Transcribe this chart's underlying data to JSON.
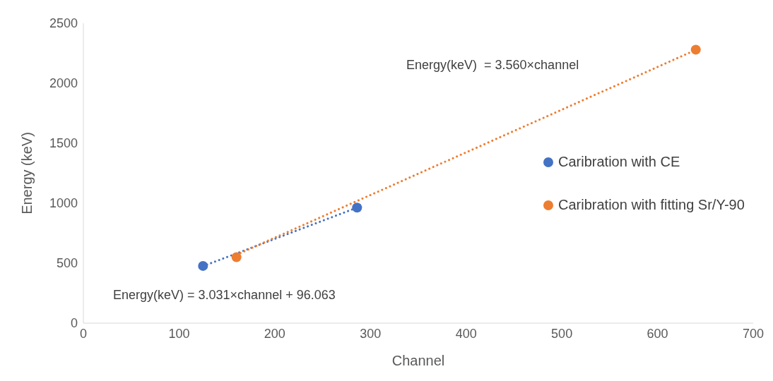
{
  "chart_data": {
    "type": "scatter",
    "xlabel": "Channel",
    "ylabel": "Energy (keV)",
    "xlim": [
      0,
      700
    ],
    "xticks": [
      0,
      100,
      200,
      300,
      400,
      500,
      600,
      700
    ],
    "ylim": [
      0,
      2500
    ],
    "yticks": [
      0,
      500,
      1000,
      1500,
      2000,
      2500
    ],
    "legend": "right",
    "series": [
      {
        "name": "Caribration with CE",
        "color": "#4472c4",
        "marker": "circle",
        "x": [
          125,
          286
        ],
        "values": [
          477,
          963
        ]
      },
      {
        "name": "Caribration with fitting Sr/Y-90",
        "color": "#ed7d31",
        "marker": "circle",
        "x": [
          160,
          640
        ],
        "values": [
          550,
          2280
        ]
      },
      {
        "type": "line",
        "color": "#4472c4",
        "line_style": "dotted",
        "marker": "none",
        "x": [
          125,
          286
        ],
        "values": [
          475,
          963
        ]
      },
      {
        "type": "line",
        "color": "#ed7d31",
        "line_style": "dotted",
        "marker": "none",
        "x": [
          160,
          640
        ],
        "values": [
          570,
          2278
        ]
      }
    ],
    "annotations": [
      "Energy(keV)  = 3.560×channel",
      "Energy(keV) = 3.031×channel + 96.063"
    ]
  }
}
